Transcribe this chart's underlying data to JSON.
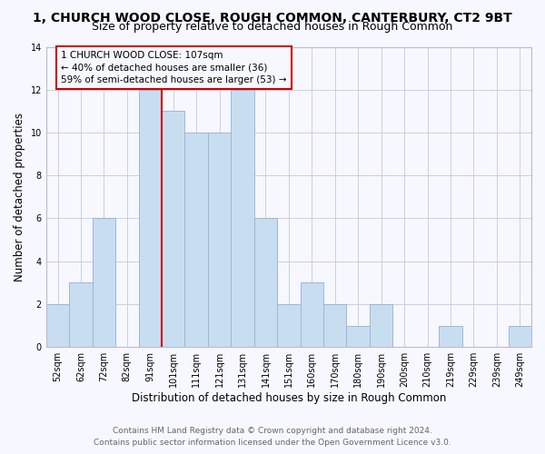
{
  "title": "1, CHURCH WOOD CLOSE, ROUGH COMMON, CANTERBURY, CT2 9BT",
  "subtitle": "Size of property relative to detached houses in Rough Common",
  "xlabel": "Distribution of detached houses by size in Rough Common",
  "ylabel": "Number of detached properties",
  "bar_labels": [
    "52sqm",
    "62sqm",
    "72sqm",
    "82sqm",
    "91sqm",
    "101sqm",
    "111sqm",
    "121sqm",
    "131sqm",
    "141sqm",
    "151sqm",
    "160sqm",
    "170sqm",
    "180sqm",
    "190sqm",
    "200sqm",
    "210sqm",
    "219sqm",
    "229sqm",
    "239sqm",
    "249sqm"
  ],
  "bar_heights": [
    2,
    3,
    6,
    0,
    12,
    11,
    10,
    10,
    12,
    6,
    2,
    3,
    2,
    1,
    2,
    0,
    0,
    1,
    0,
    0,
    1
  ],
  "bar_color": "#c9ddf0",
  "bar_edgecolor": "#9ab8d8",
  "annotation_box_text": "1 CHURCH WOOD CLOSE: 107sqm\n← 40% of detached houses are smaller (36)\n59% of semi-detached houses are larger (53) →",
  "annotation_box_edgecolor": "#cc0000",
  "vline_color": "#cc0000",
  "vline_bar_index": 4,
  "ylim": [
    0,
    14
  ],
  "yticks": [
    0,
    2,
    4,
    6,
    8,
    10,
    12,
    14
  ],
  "footer_line1": "Contains HM Land Registry data © Crown copyright and database right 2024.",
  "footer_line2": "Contains public sector information licensed under the Open Government Licence v3.0.",
  "bg_color": "#f7f7ff",
  "grid_color": "#c8d0e0",
  "title_fontsize": 10,
  "subtitle_fontsize": 9,
  "axis_label_fontsize": 8.5,
  "tick_fontsize": 7,
  "annotation_fontsize": 7.5,
  "footer_fontsize": 6.5
}
